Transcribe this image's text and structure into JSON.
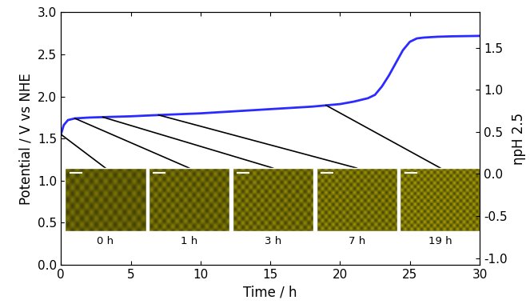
{
  "chart_data": {
    "type": "line",
    "x_label": "Time / h",
    "y_label": "Potential / V vs NHE",
    "y2_label": "ηpH 2.5",
    "x": [
      0,
      0.2,
      0.5,
      1,
      2,
      3,
      5,
      7,
      10,
      12,
      15,
      18,
      20,
      21,
      22,
      22.5,
      23,
      23.5,
      24,
      24.5,
      25,
      25.5,
      26,
      27,
      28,
      30
    ],
    "series": [
      {
        "name": "Potential",
        "color": "#2b2bff",
        "line_style": "solid",
        "values": [
          1.55,
          1.66,
          1.72,
          1.74,
          1.75,
          1.755,
          1.765,
          1.78,
          1.8,
          1.82,
          1.85,
          1.88,
          1.91,
          1.94,
          1.98,
          2.02,
          2.12,
          2.25,
          2.4,
          2.55,
          2.65,
          2.69,
          2.7,
          2.71,
          2.715,
          2.72
        ]
      }
    ],
    "xlim": [
      0,
      30
    ],
    "xticks": [
      0,
      5,
      10,
      15,
      20,
      25,
      30
    ],
    "ylim": [
      0,
      3.0
    ],
    "yticks": [
      {
        "value": 0.0,
        "label": "0.0"
      },
      {
        "value": 0.5,
        "label": "0.5"
      },
      {
        "value": 1.0,
        "label": "1.0"
      },
      {
        "value": 1.5,
        "label": "1.5"
      },
      {
        "value": 2.0,
        "label": "2.0"
      },
      {
        "value": 2.5,
        "label": "2.5"
      },
      {
        "value": 3.0,
        "label": "3.0"
      }
    ],
    "y2lim": [
      -1.08,
      1.92
    ],
    "y2ticks": [
      {
        "value": -1.0,
        "label": "-1.0"
      },
      {
        "value": -0.5,
        "label": "-0.5"
      },
      {
        "value": 0.0,
        "label": "0.0"
      },
      {
        "value": 0.5,
        "label": "0.5"
      },
      {
        "value": 1.0,
        "label": "1.0"
      },
      {
        "value": 1.5,
        "label": "1.5"
      }
    ],
    "annotations": [
      {
        "label": "0 h",
        "time": 0
      },
      {
        "label": "1 h",
        "time": 1
      },
      {
        "label": "3 h",
        "time": 3
      },
      {
        "label": "7 h",
        "time": 7
      },
      {
        "label": "19 h",
        "time": 19
      }
    ]
  }
}
